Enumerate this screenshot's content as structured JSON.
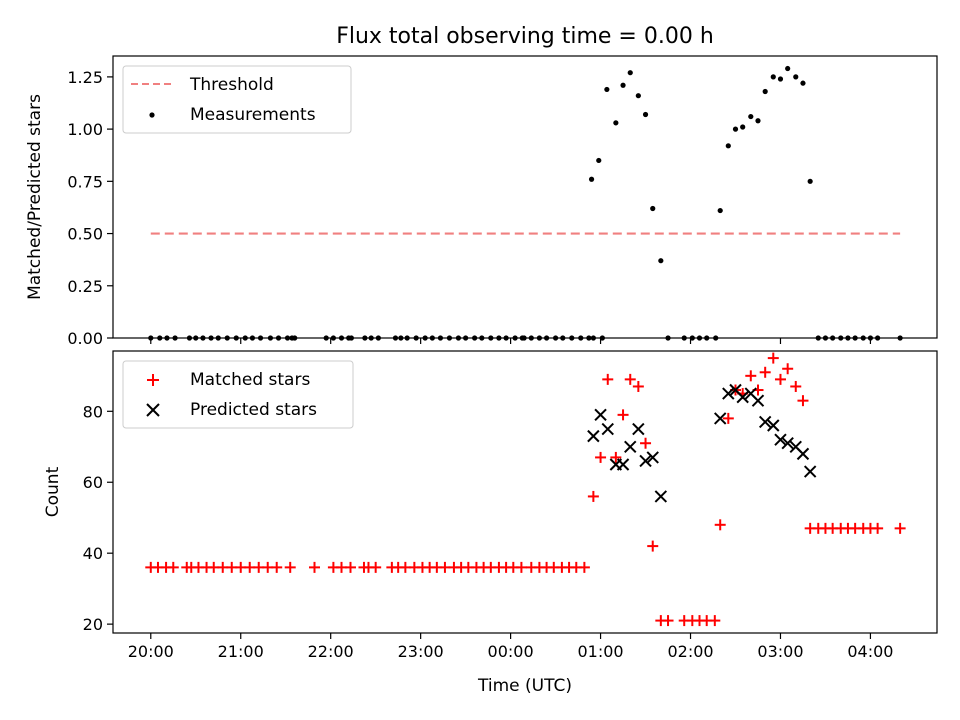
{
  "figure": {
    "title": "Flux total observing time = 0.00 h",
    "xlabel": "Time (UTC)",
    "x_ticks": [
      "20:00",
      "21:00",
      "22:00",
      "23:00",
      "00:00",
      "01:00",
      "02:00",
      "03:00",
      "04:00"
    ],
    "x_tick_hours": [
      0,
      1,
      2,
      3,
      4,
      5,
      6,
      7,
      8
    ],
    "x_unit_note_hidden": true
  },
  "colors": {
    "threshold": "#f08080",
    "measurements": "#000000",
    "matched": "#ff0000",
    "predicted": "#000000"
  },
  "chart_data": [
    {
      "type": "scatter",
      "ylabel": "Matched/Predicted stars",
      "xlim_hours": [
        -0.42,
        8.74
      ],
      "ylim": [
        0,
        1.35
      ],
      "y_ticks": [
        "0.00",
        "0.25",
        "0.50",
        "0.75",
        "1.00",
        "1.25"
      ],
      "y_tick_values": [
        0,
        0.25,
        0.5,
        0.75,
        1.0,
        1.25
      ],
      "legend": {
        "position": "upper-left",
        "entries": [
          "Threshold",
          "Measurements"
        ]
      },
      "series": [
        {
          "name": "Threshold",
          "kind": "dashed-line",
          "x_hours": [
            0,
            8.33
          ],
          "y": [
            0.5,
            0.5
          ]
        },
        {
          "name": "Measurements",
          "kind": "dot",
          "points": [
            [
              0,
              0
            ],
            [
              0.1,
              0
            ],
            [
              0.18,
              0
            ],
            [
              0.27,
              0
            ],
            [
              0.43,
              0
            ],
            [
              0.5,
              0
            ],
            [
              0.58,
              0
            ],
            [
              0.67,
              0
            ],
            [
              0.75,
              0
            ],
            [
              0.85,
              0
            ],
            [
              0.95,
              0
            ],
            [
              1.05,
              0
            ],
            [
              1.13,
              0
            ],
            [
              1.22,
              0
            ],
            [
              1.33,
              0
            ],
            [
              1.42,
              0
            ],
            [
              1.52,
              0
            ],
            [
              1.6,
              0
            ],
            [
              1.57,
              0
            ],
            [
              1.95,
              0
            ],
            [
              2.23,
              0
            ],
            [
              2.03,
              0
            ],
            [
              2.12,
              0
            ],
            [
              2.2,
              0
            ],
            [
              2.38,
              0
            ],
            [
              2.45,
              0
            ],
            [
              2.53,
              0
            ],
            [
              2.72,
              0
            ],
            [
              2.78,
              0
            ],
            [
              2.85,
              0
            ],
            [
              2.95,
              0
            ],
            [
              3.05,
              0
            ],
            [
              3.13,
              0
            ],
            [
              3.22,
              0
            ],
            [
              3.32,
              0
            ],
            [
              3.42,
              0
            ],
            [
              3.5,
              0
            ],
            [
              3.6,
              0
            ],
            [
              3.68,
              0
            ],
            [
              3.78,
              0
            ],
            [
              3.87,
              0
            ],
            [
              3.95,
              0
            ],
            [
              4.05,
              0
            ],
            [
              4.13,
              0
            ],
            [
              4.23,
              0
            ],
            [
              4.32,
              0
            ],
            [
              4.4,
              0
            ],
            [
              4.5,
              0
            ],
            [
              4.58,
              0
            ],
            [
              4.68,
              0
            ],
            [
              4.78,
              0
            ],
            [
              4.87,
              0
            ],
            [
              4.92,
              0
            ],
            [
              5.02,
              0
            ],
            [
              4.15,
              0
            ],
            [
              4.9,
              0.76
            ],
            [
              4.98,
              0.85
            ],
            [
              5.07,
              1.19
            ],
            [
              5.17,
              1.03
            ],
            [
              5.25,
              1.21
            ],
            [
              5.33,
              1.27
            ],
            [
              5.42,
              1.16
            ],
            [
              5.5,
              1.07
            ],
            [
              5.58,
              0.62
            ],
            [
              5.67,
              0.37
            ],
            [
              5.75,
              0
            ],
            [
              5.93,
              0
            ],
            [
              6.02,
              0
            ],
            [
              6.1,
              0
            ],
            [
              6.18,
              0
            ],
            [
              6.28,
              0
            ],
            [
              6.33,
              0.61
            ],
            [
              6.42,
              0.92
            ],
            [
              6.5,
              1.0
            ],
            [
              6.58,
              1.01
            ],
            [
              6.67,
              1.06
            ],
            [
              6.75,
              1.04
            ],
            [
              6.83,
              1.18
            ],
            [
              6.92,
              1.25
            ],
            [
              7.0,
              1.24
            ],
            [
              7.08,
              1.29
            ],
            [
              7.17,
              1.25
            ],
            [
              7.25,
              1.22
            ],
            [
              7.33,
              0.75
            ],
            [
              7.42,
              0
            ],
            [
              7.5,
              0
            ],
            [
              7.58,
              0
            ],
            [
              7.67,
              0
            ],
            [
              7.75,
              0
            ],
            [
              7.83,
              0
            ],
            [
              7.92,
              0
            ],
            [
              8.0,
              0
            ],
            [
              8.08,
              0
            ],
            [
              8.33,
              0
            ]
          ]
        }
      ]
    },
    {
      "type": "scatter",
      "ylabel": "Count",
      "xlim_hours": [
        -0.42,
        8.74
      ],
      "ylim": [
        17.5,
        97
      ],
      "y_ticks": [
        "20",
        "40",
        "60",
        "80"
      ],
      "y_tick_values": [
        20,
        40,
        60,
        80
      ],
      "legend": {
        "position": "upper-left",
        "entries": [
          "Matched stars",
          "Predicted stars"
        ]
      },
      "series": [
        {
          "name": "Matched stars",
          "kind": "plus",
          "points": [
            [
              0,
              36
            ],
            [
              0.08,
              36
            ],
            [
              0.17,
              36
            ],
            [
              0.25,
              36
            ],
            [
              0.4,
              36
            ],
            [
              0.45,
              36
            ],
            [
              0.53,
              36
            ],
            [
              0.62,
              36
            ],
            [
              0.7,
              36
            ],
            [
              0.8,
              36
            ],
            [
              0.9,
              36
            ],
            [
              1.0,
              36
            ],
            [
              1.1,
              36
            ],
            [
              1.2,
              36
            ],
            [
              1.3,
              36
            ],
            [
              1.4,
              36
            ],
            [
              1.55,
              36
            ],
            [
              1.82,
              36
            ],
            [
              2.03,
              36
            ],
            [
              2.12,
              36
            ],
            [
              2.22,
              36
            ],
            [
              2.37,
              36
            ],
            [
              2.42,
              36
            ],
            [
              2.5,
              36
            ],
            [
              2.68,
              36
            ],
            [
              2.75,
              36
            ],
            [
              2.83,
              36
            ],
            [
              2.93,
              36
            ],
            [
              3.02,
              36
            ],
            [
              3.1,
              36
            ],
            [
              3.18,
              36
            ],
            [
              3.27,
              36
            ],
            [
              3.37,
              36
            ],
            [
              3.45,
              36
            ],
            [
              3.53,
              36
            ],
            [
              3.62,
              36
            ],
            [
              3.7,
              36
            ],
            [
              3.78,
              36
            ],
            [
              3.87,
              36
            ],
            [
              3.95,
              36
            ],
            [
              4.03,
              36
            ],
            [
              4.12,
              36
            ],
            [
              4.23,
              36
            ],
            [
              4.32,
              36
            ],
            [
              4.4,
              36
            ],
            [
              4.48,
              36
            ],
            [
              4.57,
              36
            ],
            [
              4.65,
              36
            ],
            [
              4.73,
              36
            ],
            [
              4.82,
              36
            ],
            [
              4.92,
              56
            ],
            [
              5.0,
              67
            ],
            [
              5.08,
              89
            ],
            [
              5.17,
              67
            ],
            [
              5.25,
              79
            ],
            [
              5.33,
              89
            ],
            [
              5.42,
              87
            ],
            [
              5.5,
              71
            ],
            [
              5.58,
              42
            ],
            [
              5.67,
              21
            ],
            [
              5.75,
              21
            ],
            [
              5.93,
              21
            ],
            [
              6.02,
              21
            ],
            [
              6.1,
              21
            ],
            [
              6.18,
              21
            ],
            [
              6.27,
              21
            ],
            [
              6.33,
              48
            ],
            [
              6.42,
              78
            ],
            [
              6.5,
              86
            ],
            [
              6.58,
              85
            ],
            [
              6.67,
              90
            ],
            [
              6.75,
              86
            ],
            [
              6.83,
              91
            ],
            [
              6.92,
              95
            ],
            [
              7.0,
              89
            ],
            [
              7.08,
              92
            ],
            [
              7.17,
              87
            ],
            [
              7.25,
              83
            ],
            [
              7.33,
              47
            ],
            [
              7.42,
              47
            ],
            [
              7.5,
              47
            ],
            [
              7.58,
              47
            ],
            [
              7.67,
              47
            ],
            [
              7.75,
              47
            ],
            [
              7.83,
              47
            ],
            [
              7.92,
              47
            ],
            [
              8.0,
              47
            ],
            [
              8.08,
              47
            ],
            [
              8.33,
              47
            ]
          ]
        },
        {
          "name": "Predicted stars",
          "kind": "cross",
          "points": [
            [
              4.92,
              73
            ],
            [
              5.0,
              79
            ],
            [
              5.08,
              75
            ],
            [
              5.17,
              65
            ],
            [
              5.25,
              65
            ],
            [
              5.33,
              70
            ],
            [
              5.42,
              75
            ],
            [
              5.5,
              66
            ],
            [
              5.58,
              67
            ],
            [
              5.67,
              56
            ],
            [
              6.33,
              78
            ],
            [
              6.42,
              85
            ],
            [
              6.5,
              86
            ],
            [
              6.58,
              84
            ],
            [
              6.67,
              85
            ],
            [
              6.75,
              83
            ],
            [
              6.83,
              77
            ],
            [
              6.92,
              76
            ],
            [
              7.0,
              72
            ],
            [
              7.08,
              71
            ],
            [
              7.17,
              70
            ],
            [
              7.25,
              68
            ],
            [
              7.33,
              63
            ]
          ]
        }
      ]
    }
  ]
}
